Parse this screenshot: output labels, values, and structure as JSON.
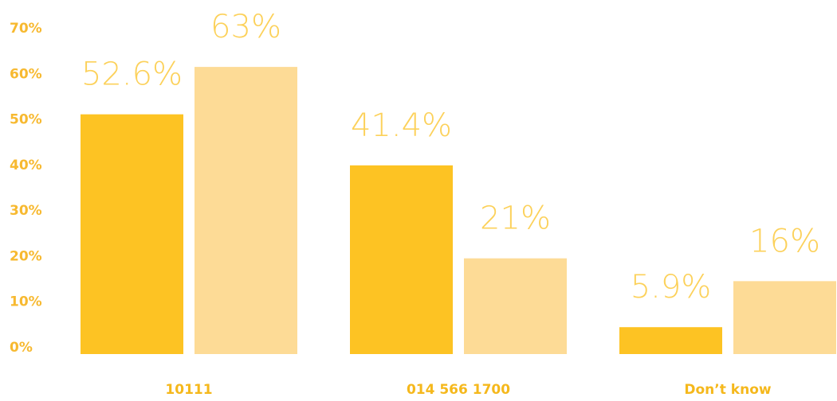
{
  "chart_data": {
    "type": "bar",
    "categories": [
      "10111",
      "014 566 1700",
      "Don’t know"
    ],
    "series": [
      {
        "color": "#fdc323",
        "values": [
          52.6,
          41.4,
          5.9
        ],
        "value_labels": [
          "52.6%",
          "41.4%",
          "5.9%"
        ]
      },
      {
        "color": "#fddb96",
        "values": [
          63,
          21,
          16
        ],
        "value_labels": [
          "63%",
          "21%",
          "16%"
        ]
      }
    ],
    "ylim": [
      0,
      70
    ],
    "yticks": [
      {
        "value": 0,
        "label": "0%"
      },
      {
        "value": 10,
        "label": "10%"
      },
      {
        "value": 20,
        "label": "20%"
      },
      {
        "value": 30,
        "label": "30%"
      },
      {
        "value": 40,
        "label": "40%"
      },
      {
        "value": 50,
        "label": "50%"
      },
      {
        "value": 60,
        "label": "60%"
      },
      {
        "value": 70,
        "label": "70%"
      }
    ],
    "grid": false
  }
}
